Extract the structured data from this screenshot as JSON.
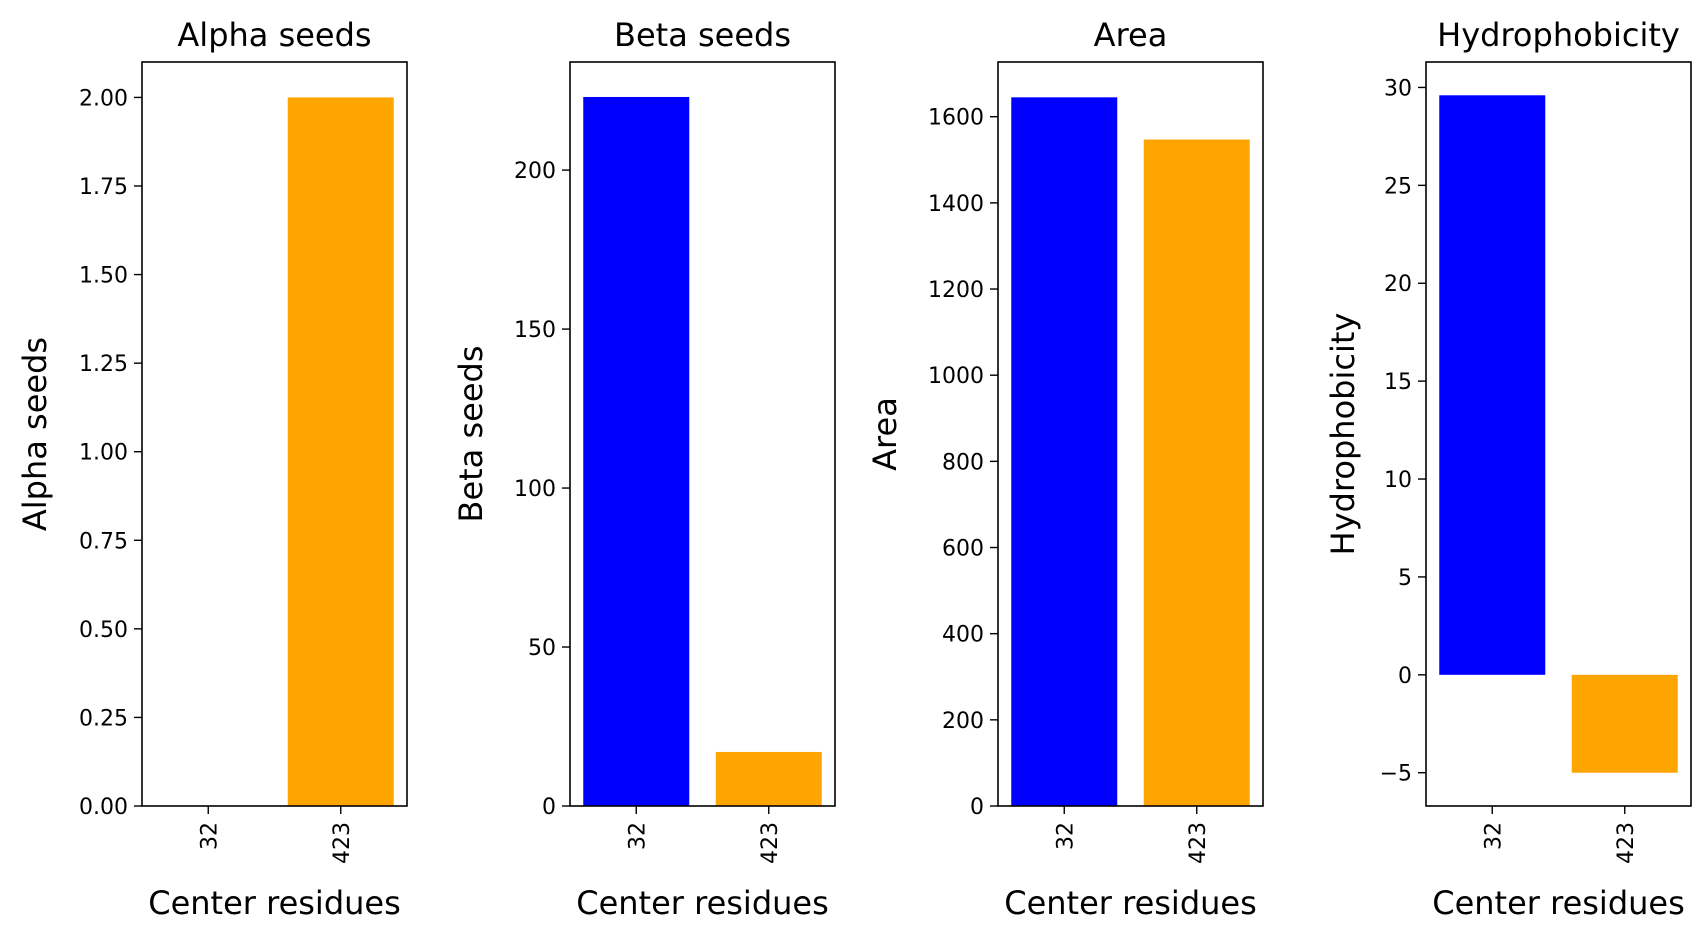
{
  "chart_data": [
    {
      "type": "bar",
      "title": "Alpha seeds",
      "xlabel": "Center residues",
      "ylabel": "Alpha seeds",
      "categories": [
        "32",
        "423"
      ],
      "values": [
        0,
        2
      ],
      "colors": [
        "#0000ff",
        "#ffa500"
      ],
      "ylim": [
        0,
        2.1
      ],
      "yticks": [
        0,
        0.25,
        0.5,
        0.75,
        1.0,
        1.25,
        1.5,
        1.75,
        2.0
      ],
      "ytick_labels": [
        "0.00",
        "0.25",
        "0.50",
        "0.75",
        "1.00",
        "1.25",
        "1.50",
        "1.75",
        "2.00"
      ],
      "grid": false
    },
    {
      "type": "bar",
      "title": "Beta seeds",
      "xlabel": "Center residues",
      "ylabel": "Beta seeds",
      "categories": [
        "32",
        "423"
      ],
      "values": [
        223,
        17
      ],
      "colors": [
        "#0000ff",
        "#ffa500"
      ],
      "ylim": [
        0,
        234
      ],
      "yticks": [
        0,
        50,
        100,
        150,
        200
      ],
      "ytick_labels": [
        "0",
        "50",
        "100",
        "150",
        "200"
      ],
      "grid": false
    },
    {
      "type": "bar",
      "title": "Area",
      "xlabel": "Center residues",
      "ylabel": "Area",
      "categories": [
        "32",
        "423"
      ],
      "values": [
        1645,
        1547
      ],
      "colors": [
        "#0000ff",
        "#ffa500"
      ],
      "ylim": [
        0,
        1727
      ],
      "yticks": [
        0,
        200,
        400,
        600,
        800,
        1000,
        1200,
        1400,
        1600
      ],
      "ytick_labels": [
        "0",
        "200",
        "400",
        "600",
        "800",
        "1000",
        "1200",
        "1400",
        "1600"
      ],
      "grid": false
    },
    {
      "type": "bar",
      "title": "Hydrophobicity",
      "xlabel": "Center residues",
      "ylabel": "Hydrophobicity",
      "categories": [
        "32",
        "423"
      ],
      "values": [
        29.6,
        -5.0
      ],
      "colors": [
        "#0000ff",
        "#ffa500"
      ],
      "ylim": [
        -6.7,
        31.3
      ],
      "yticks": [
        -5,
        0,
        5,
        10,
        15,
        20,
        25,
        30
      ],
      "ytick_labels": [
        "−5",
        "0",
        "5",
        "10",
        "15",
        "20",
        "25",
        "30"
      ],
      "grid": false
    }
  ]
}
